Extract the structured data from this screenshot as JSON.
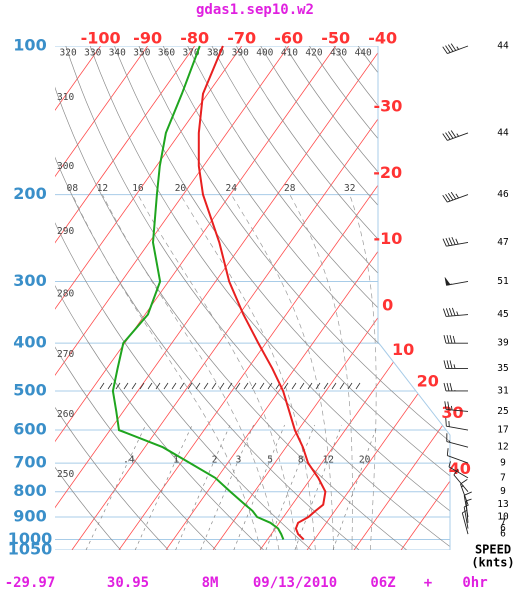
{
  "chart_data": {
    "type": "skewt",
    "title": "gdas1.sep10.w2",
    "ylim": [
      1050,
      100
    ],
    "yticks": [
      100,
      200,
      300,
      400,
      500,
      600,
      700,
      800,
      900,
      1000,
      1050
    ],
    "log_y": true,
    "xlim": [
      -33.6,
      50.4
    ],
    "xticks": [
      -100,
      -90,
      -80,
      -70,
      -60,
      -50,
      -40,
      -30,
      -20,
      -10,
      0,
      10,
      20,
      30,
      40
    ],
    "isotherm_color": "#ff4d4d",
    "dry_adiabats": [
      250,
      260,
      270,
      280,
      290,
      300,
      310,
      320,
      330,
      340,
      350,
      360,
      370,
      380,
      390,
      400,
      410,
      420,
      430,
      440
    ],
    "moist_adiabats": [
      {
        "value": 8,
        "label": "08"
      },
      12,
      16,
      20,
      24,
      28,
      32
    ],
    "mixing_ratios": [
      {
        "value": 0.4,
        "label": ".4"
      },
      1,
      2,
      3,
      5,
      8,
      12,
      20
    ],
    "y": [
      100,
      125,
      150,
      175,
      200,
      250,
      300,
      350,
      400,
      450,
      500,
      550,
      600,
      650,
      700,
      750,
      800,
      850,
      875,
      900,
      925,
      950,
      975,
      1000
    ],
    "series": [
      {
        "color": "#e82020",
        "values": [
          -74.0,
          -71.0,
          -66.0,
          -61.0,
          -55.8,
          -45.1,
          -37.1,
          -29.1,
          -21.6,
          -14.8,
          -9.1,
          -4.7,
          -0.7,
          3.6,
          7.1,
          11.5,
          15.1,
          16.6,
          15.9,
          15.3,
          14.0,
          14.4,
          15.7,
          17.7
        ]
      },
      {
        "color": "#1fa51f",
        "values": [
          -78.9,
          -75.5,
          -73.0,
          -69.3,
          -65.6,
          -59.2,
          -51.8,
          -49.4,
          -50.3,
          -47.7,
          -45.3,
          -41.5,
          -38.1,
          -26.2,
          -18.0,
          -10.4,
          -5.1,
          0.0,
          2.5,
          4.4,
          8.1,
          10.6,
          12.1,
          13.4
        ]
      }
    ],
    "wind": {
      "label": [
        "SPEED",
        "(knts)"
      ],
      "levels": [
        100,
        150,
        200,
        250,
        300,
        350,
        400,
        450,
        500,
        550,
        600,
        650,
        700,
        750,
        800,
        850,
        900,
        925,
        950,
        975
      ],
      "speed": [
        44,
        44,
        46,
        47,
        51,
        45,
        39,
        35,
        31,
        25,
        17,
        12,
        9,
        7,
        9,
        13,
        10,
        7,
        6,
        6
      ],
      "direction": [
        250,
        250,
        250,
        260,
        260,
        265,
        270,
        270,
        270,
        275,
        280,
        285,
        290,
        300,
        320,
        340,
        350,
        355,
        350,
        345
      ]
    },
    "footer": [
      "-29.97",
      "30.95",
      "8M",
      "09/13/2010",
      "06Z",
      "+",
      "0hr"
    ]
  }
}
